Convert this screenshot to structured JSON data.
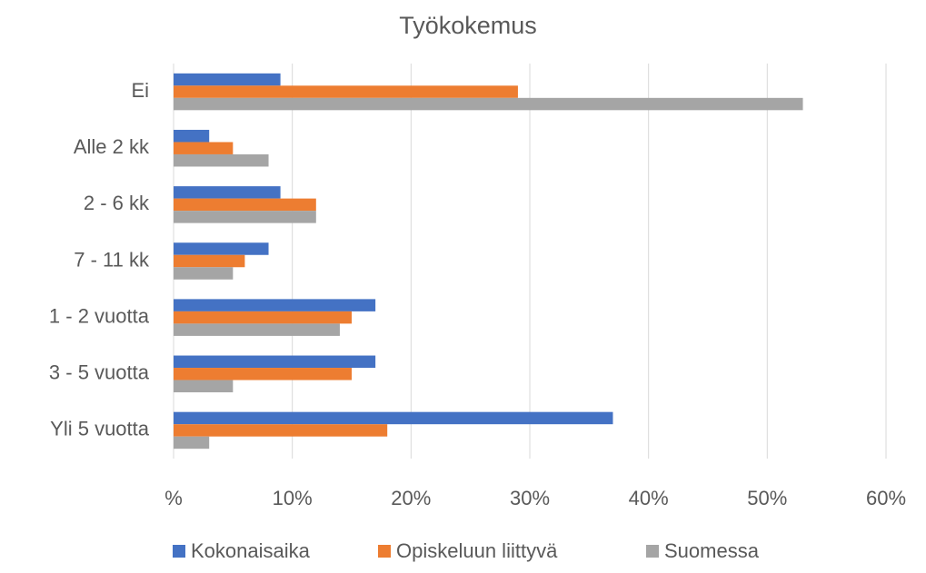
{
  "chart_data": {
    "type": "hbar",
    "title": "Työkokemus",
    "categories": [
      "Ei",
      "Alle 2 kk",
      "2 - 6 kk",
      "7 - 11 kk",
      "1 - 2 vuotta",
      "3 - 5 vuotta",
      "Yli 5 vuotta"
    ],
    "series": [
      {
        "name": "Kokonaisaika",
        "color": "#4472c4",
        "values": [
          9,
          3,
          9,
          8,
          17,
          17,
          37
        ]
      },
      {
        "name": "Opiskeluun liittyvä",
        "color": "#ed7d31",
        "values": [
          29,
          5,
          12,
          6,
          15,
          15,
          18
        ]
      },
      {
        "name": "Suomessa",
        "color": "#a5a5a5",
        "values": [
          53,
          8,
          12,
          5,
          14,
          5,
          3
        ]
      }
    ],
    "xlim": [
      0,
      60
    ],
    "xticks": [
      {
        "value": 0,
        "label": "%"
      },
      {
        "value": 10,
        "label": "10%"
      },
      {
        "value": 20,
        "label": "20%"
      },
      {
        "value": 30,
        "label": "30%"
      },
      {
        "value": 40,
        "label": "40%"
      },
      {
        "value": 50,
        "label": "50%"
      },
      {
        "value": 60,
        "label": "60%"
      }
    ],
    "grid": true,
    "legend": "bottom"
  }
}
